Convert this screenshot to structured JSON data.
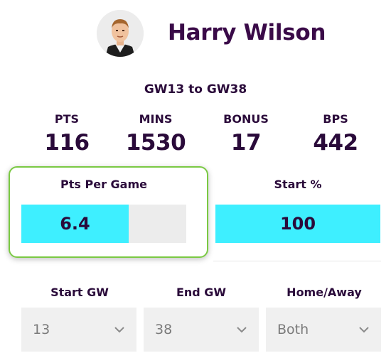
{
  "player": {
    "name": "Harry Wilson",
    "avatar_icon": "player-avatar-icon"
  },
  "range": "GW13 to GW38",
  "stats": [
    {
      "label": "PTS",
      "value": "116"
    },
    {
      "label": "MINS",
      "value": "1530"
    },
    {
      "label": "BONUS",
      "value": "17"
    },
    {
      "label": "BPS",
      "value": "442"
    }
  ],
  "pts_per_game": {
    "label": "Pts Per Game",
    "value": "6.4",
    "fill_fraction": 0.65
  },
  "start_pct": {
    "label": "Start %",
    "value": "100",
    "fill_fraction": 1.0
  },
  "filters": {
    "start_gw": {
      "label": "Start GW",
      "value": "13"
    },
    "end_gw": {
      "label": "End GW",
      "value": "38"
    },
    "home_away": {
      "label": "Home/Away",
      "value": "Both"
    }
  },
  "colors": {
    "accent_bar": "#3eefff",
    "highlight_border": "#7ac943",
    "text": "#2a0a3a"
  }
}
